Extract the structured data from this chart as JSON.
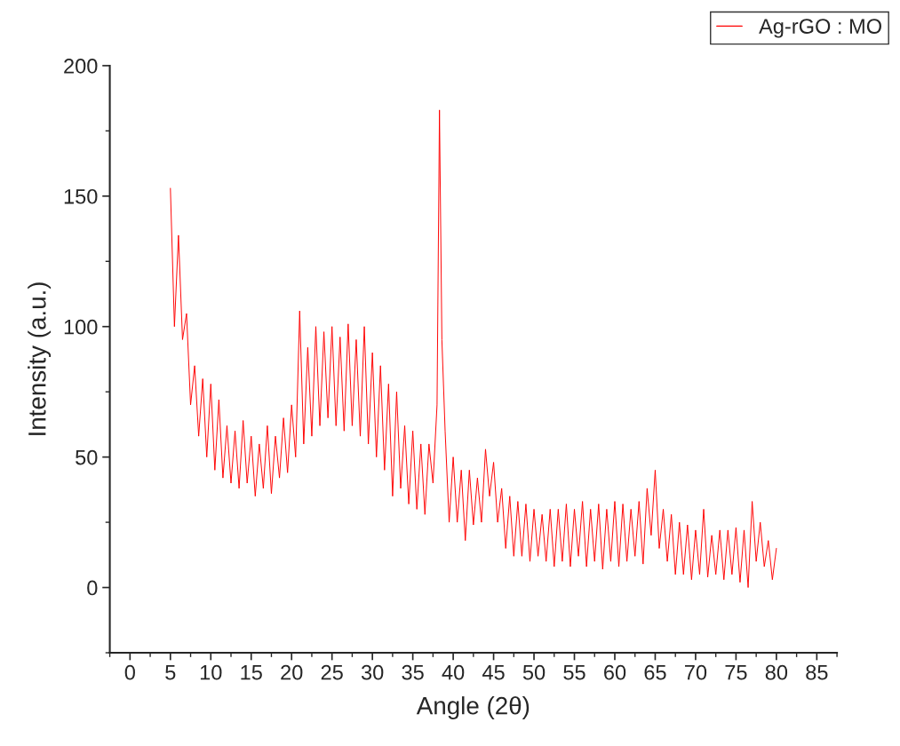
{
  "chart_data": {
    "type": "line",
    "xlabel": "Angle (2θ)",
    "ylabel": "Intensity (a.u.)",
    "legend": "top right",
    "grid": false,
    "marker": "none",
    "line_style": "solid",
    "xlim": [
      -2.5,
      87.5
    ],
    "ylim": [
      -25,
      200
    ],
    "xticks": [
      0,
      5,
      10,
      15,
      20,
      25,
      30,
      35,
      40,
      45,
      50,
      55,
      60,
      65,
      70,
      75,
      80,
      85
    ],
    "yticks": [
      0,
      50,
      100,
      150,
      200
    ],
    "series": [
      {
        "name": "Ag-rGO : MO",
        "color": "#ff0000",
        "x": [
          5,
          5.5,
          6,
          6.5,
          7,
          7.5,
          8,
          8.5,
          9,
          9.5,
          10,
          10.5,
          11,
          11.5,
          12,
          12.5,
          13,
          13.5,
          14,
          14.5,
          15,
          15.5,
          16,
          16.5,
          17,
          17.5,
          18,
          18.5,
          19,
          19.5,
          20,
          20.5,
          21,
          21.5,
          22,
          22.5,
          23,
          23.5,
          24,
          24.5,
          25,
          25.5,
          26,
          26.5,
          27,
          27.5,
          28,
          28.5,
          29,
          29.5,
          30,
          30.5,
          31,
          31.5,
          32,
          32.5,
          33,
          33.5,
          34,
          34.5,
          35,
          35.5,
          36,
          36.5,
          37,
          37.5,
          38,
          38.3,
          38.6,
          39,
          39.5,
          40,
          40.5,
          41,
          41.5,
          42,
          42.5,
          43,
          43.5,
          44,
          44.5,
          45,
          45.5,
          46,
          46.5,
          47,
          47.5,
          48,
          48.5,
          49,
          49.5,
          50,
          50.5,
          51,
          51.5,
          52,
          52.5,
          53,
          53.5,
          54,
          54.5,
          55,
          55.5,
          56,
          56.5,
          57,
          57.5,
          58,
          58.5,
          59,
          59.5,
          60,
          60.5,
          61,
          61.5,
          62,
          62.5,
          63,
          63.5,
          64,
          64.5,
          65,
          65.5,
          66,
          66.5,
          67,
          67.5,
          68,
          68.5,
          69,
          69.5,
          70,
          70.5,
          71,
          71.5,
          72,
          72.5,
          73,
          73.5,
          74,
          74.5,
          75,
          75.5,
          76,
          76.5,
          77,
          77.5,
          78,
          78.5,
          79,
          79.5,
          80
        ],
        "values": [
          153,
          100,
          135,
          95,
          105,
          70,
          85,
          58,
          80,
          50,
          78,
          45,
          72,
          42,
          62,
          40,
          60,
          38,
          64,
          40,
          58,
          35,
          55,
          38,
          62,
          36,
          58,
          42,
          65,
          44,
          70,
          50,
          106,
          55,
          92,
          58,
          100,
          62,
          98,
          65,
          100,
          62,
          96,
          60,
          101,
          62,
          95,
          58,
          100,
          55,
          90,
          50,
          85,
          45,
          78,
          35,
          75,
          38,
          62,
          32,
          60,
          30,
          55,
          28,
          55,
          40,
          70,
          183,
          95,
          60,
          25,
          50,
          25,
          45,
          18,
          45,
          24,
          42,
          25,
          53,
          35,
          48,
          25,
          38,
          15,
          35,
          12,
          33,
          12,
          32,
          10,
          30,
          12,
          28,
          10,
          30,
          8,
          30,
          10,
          32,
          8,
          30,
          12,
          33,
          8,
          30,
          10,
          32,
          7,
          30,
          10,
          33,
          8,
          32,
          10,
          30,
          12,
          33,
          9,
          38,
          20,
          45,
          15,
          30,
          10,
          28,
          5,
          25,
          5,
          24,
          3,
          22,
          5,
          30,
          4,
          20,
          5,
          22,
          3,
          22,
          5,
          23,
          2,
          22,
          0,
          33,
          10,
          25,
          8,
          18,
          3,
          15
        ]
      }
    ]
  }
}
